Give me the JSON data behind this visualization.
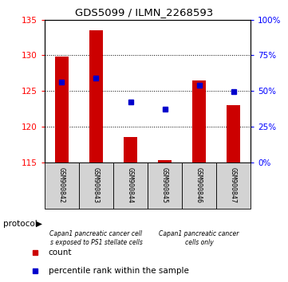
{
  "title": "GDS5099 / ILMN_2268593",
  "samples": [
    "GSM900842",
    "GSM900843",
    "GSM900844",
    "GSM900845",
    "GSM900846",
    "GSM900847"
  ],
  "bar_bottoms": [
    115,
    115,
    115,
    115,
    115,
    115
  ],
  "bar_tops": [
    129.8,
    133.5,
    118.5,
    115.3,
    126.5,
    123.0
  ],
  "percentile_values": [
    126.2,
    126.8,
    123.5,
    122.4,
    125.8,
    124.9
  ],
  "ylim_left": [
    115,
    135
  ],
  "ylim_right": [
    0,
    100
  ],
  "yticks_left": [
    115,
    120,
    125,
    130,
    135
  ],
  "yticks_right": [
    0,
    25,
    50,
    75,
    100
  ],
  "bar_color": "#cc0000",
  "percentile_color": "#0000cc",
  "protocol_group1_label": "Capan1 pancreatic cancer cell\ns exposed to PS1 stellate cells",
  "protocol_group2_label": "Capan1 pancreatic cancer\ncells only",
  "protocol_group1_color": "#ccffcc",
  "protocol_group2_color": "#66ee66",
  "legend_count_label": "count",
  "legend_percentile_label": "percentile rank within the sample",
  "protocol_label": "protocol"
}
